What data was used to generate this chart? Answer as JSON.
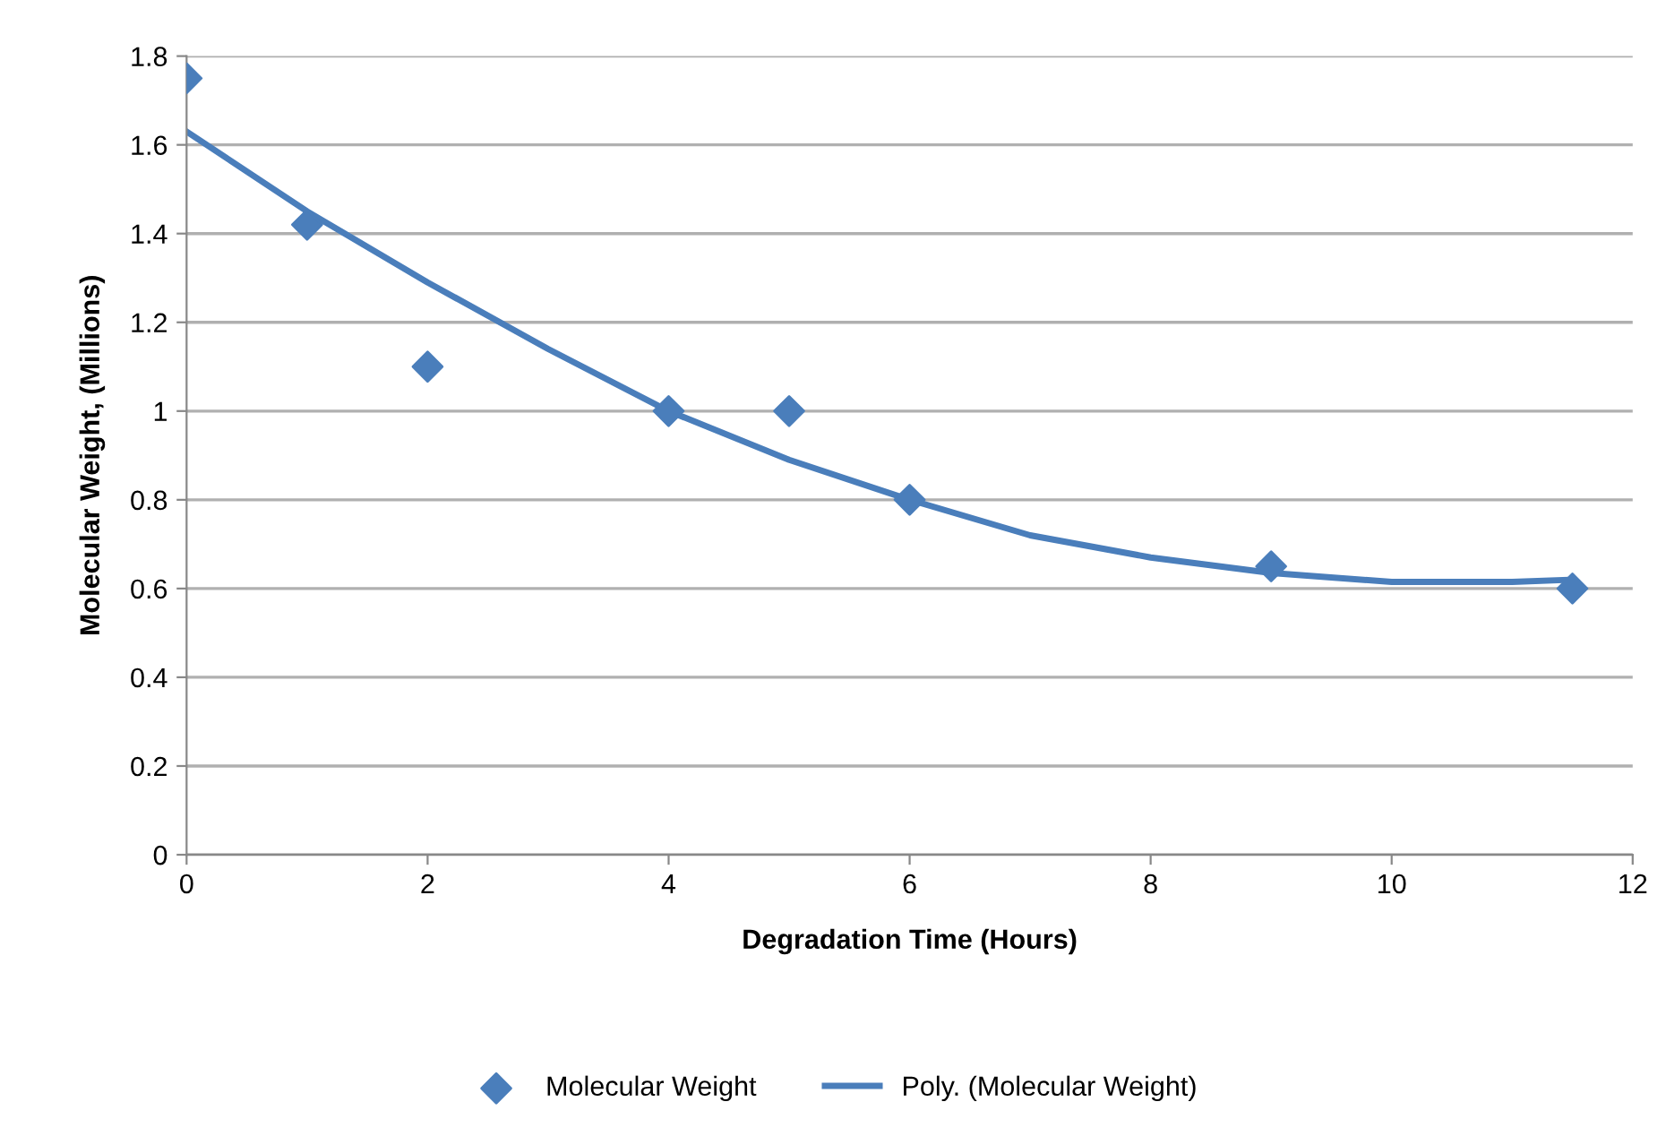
{
  "chart_data": {
    "type": "scatter",
    "xlabel": "Degradation Time (Hours)",
    "ylabel": "Molecular Weight, (Millions)",
    "xlim": [
      0,
      12
    ],
    "xticks": [
      0,
      2,
      4,
      6,
      8,
      10,
      12
    ],
    "ylim": [
      0,
      1.8
    ],
    "yticks": [
      0,
      0.2,
      0.4,
      0.6,
      0.8,
      1,
      1.2,
      1.4,
      1.6,
      1.8
    ],
    "grid": "y",
    "legend": "bottom",
    "series": [
      {
        "name": "Molecular Weight",
        "marker": "diamond",
        "color": "#4a7ebb",
        "x": [
          0,
          1,
          2,
          4,
          5,
          6,
          9,
          11.5
        ],
        "values": [
          1.75,
          1.42,
          1.1,
          1.0,
          1.0,
          0.8,
          0.65,
          0.6
        ]
      },
      {
        "name": "Poly. (Molecular Weight)",
        "type": "line",
        "marker": "none",
        "line_style": "solid",
        "color": "#4a7ebb",
        "x": [
          0,
          1,
          2,
          3,
          4,
          5,
          6,
          7,
          8,
          9,
          10,
          11,
          11.5
        ],
        "values": [
          1.63,
          1.45,
          1.29,
          1.14,
          1.0,
          0.89,
          0.8,
          0.72,
          0.67,
          0.635,
          0.615,
          0.615,
          0.62
        ]
      }
    ]
  }
}
